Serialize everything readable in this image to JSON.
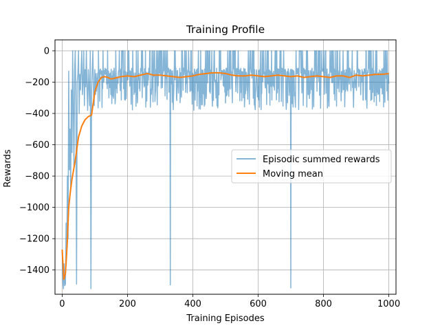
{
  "chart_data": {
    "type": "line",
    "title": "Training Profile",
    "xlabel": "Training Episodes",
    "ylabel": "Rewards",
    "xlim": [
      -22,
      1022
    ],
    "ylim": [
      -1555,
      70
    ],
    "xticks": [
      0,
      200,
      400,
      600,
      800,
      1000
    ],
    "yticks": [
      0,
      -200,
      -400,
      -600,
      -800,
      -1000,
      -1200,
      -1400
    ],
    "grid": true,
    "legend_position": "center-right",
    "colors": {
      "raw": "#1f77b4",
      "mean": "#ff7f0e",
      "grid": "#b0b0b0"
    },
    "series": [
      {
        "name": "Episodic summed rewards",
        "style": "raw",
        "keypoints": [
          [
            0,
            -1280
          ],
          [
            2,
            -1470
          ],
          [
            4,
            -1520
          ],
          [
            6,
            -1360
          ],
          [
            8,
            -1500
          ],
          [
            10,
            -1490
          ],
          [
            12,
            -1100
          ],
          [
            14,
            -1300
          ],
          [
            16,
            -800
          ],
          [
            18,
            -1200
          ],
          [
            20,
            -130
          ],
          [
            22,
            -760
          ],
          [
            24,
            -500
          ],
          [
            26,
            -900
          ],
          [
            28,
            -250
          ],
          [
            30,
            -650
          ],
          [
            32,
            0
          ],
          [
            34,
            -350
          ],
          [
            36,
            -750
          ],
          [
            38,
            -130
          ],
          [
            40,
            0
          ],
          [
            42,
            -350
          ],
          [
            44,
            -1490
          ],
          [
            46,
            -200
          ],
          [
            48,
            -150
          ],
          [
            50,
            0
          ],
          [
            52,
            -400
          ],
          [
            54,
            -150
          ],
          [
            56,
            -250
          ],
          [
            58,
            -120
          ],
          [
            60,
            0
          ],
          [
            62,
            -280
          ],
          [
            64,
            -200
          ],
          [
            66,
            0
          ],
          [
            68,
            -350
          ],
          [
            70,
            -120
          ],
          [
            72,
            -230
          ],
          [
            74,
            0
          ],
          [
            76,
            -250
          ],
          [
            78,
            -380
          ],
          [
            80,
            -120
          ],
          [
            82,
            -230
          ],
          [
            84,
            -350
          ],
          [
            86,
            0
          ],
          [
            88,
            -1520
          ],
          [
            90,
            -250
          ],
          [
            92,
            -120
          ],
          [
            94,
            0
          ],
          [
            96,
            -280
          ],
          [
            98,
            -350
          ],
          [
            100,
            -120
          ],
          [
            330,
            -120
          ],
          [
            331,
            -1495
          ],
          [
            332,
            -120
          ],
          [
            699,
            -120
          ],
          [
            700,
            -1515
          ],
          [
            701,
            -120
          ]
        ]
      },
      {
        "name": "Moving mean",
        "style": "mean",
        "x": [
          0,
          5,
          10,
          15,
          20,
          25,
          30,
          40,
          50,
          60,
          70,
          80,
          90,
          100,
          110,
          120,
          130,
          140,
          150,
          160,
          170,
          180,
          200,
          220,
          240,
          260,
          280,
          300,
          320,
          340,
          360,
          380,
          400,
          420,
          440,
          460,
          480,
          500,
          520,
          540,
          560,
          580,
          600,
          620,
          640,
          660,
          680,
          700,
          720,
          740,
          760,
          780,
          800,
          820,
          840,
          860,
          880,
          900,
          920,
          940,
          960,
          980,
          1000
        ],
        "y": [
          -1270,
          -1460,
          -1420,
          -1250,
          -1000,
          -900,
          -820,
          -700,
          -550,
          -480,
          -440,
          -420,
          -410,
          -260,
          -200,
          -170,
          -165,
          -170,
          -180,
          -175,
          -170,
          -165,
          -160,
          -165,
          -155,
          -145,
          -155,
          -155,
          -160,
          -165,
          -170,
          -165,
          -160,
          -150,
          -145,
          -140,
          -140,
          -145,
          -155,
          -160,
          -160,
          -155,
          -160,
          -165,
          -160,
          -155,
          -160,
          -165,
          -160,
          -170,
          -165,
          -160,
          -165,
          -170,
          -160,
          -160,
          -170,
          -155,
          -160,
          -155,
          -150,
          -150,
          -145
        ]
      }
    ]
  }
}
